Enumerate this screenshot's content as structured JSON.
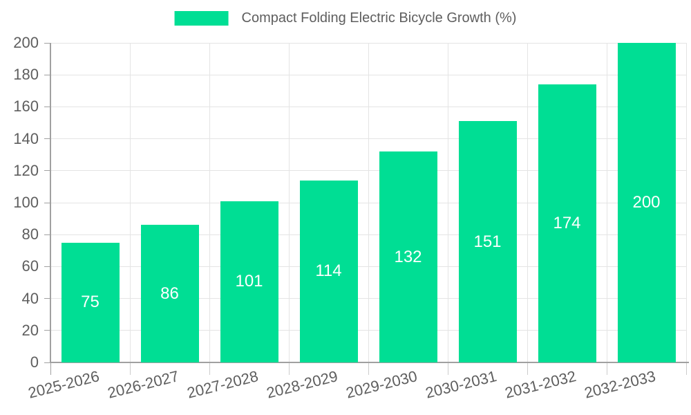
{
  "chart": {
    "legend_label": "Compact Folding Electric Bicycle Growth (%)"
  },
  "chart_data": {
    "type": "bar",
    "title": "Compact Folding Electric Bicycle Growth (%)",
    "series_name": "Compact Folding Electric Bicycle Growth (%)",
    "categories": [
      "2025-2026",
      "2026-2027",
      "2027-2028",
      "2028-2029",
      "2029-2030",
      "2030-2031",
      "2031-2032",
      "2032-2033"
    ],
    "values": [
      75,
      86,
      101,
      114,
      132,
      151,
      174,
      200
    ],
    "value_labels": [
      "75",
      "86",
      "101",
      "114",
      "132",
      "151",
      "174",
      "200"
    ],
    "xlabel": "",
    "ylabel": "",
    "ylim": [
      0,
      200
    ],
    "ytick_step": 20,
    "yticks": [
      0,
      20,
      40,
      60,
      80,
      100,
      120,
      140,
      160,
      180,
      200
    ],
    "grid": true,
    "legend_position": "top-center",
    "colors": {
      "bar": "#00DE94",
      "value_label": "#FFFFFF",
      "axis_line": "#A0A0A0",
      "grid_line": "#E4E4E4",
      "x_tick_mark": "#CCCCCC",
      "tick_text": "#5E5E5E",
      "background": "#FFFFFF"
    }
  }
}
